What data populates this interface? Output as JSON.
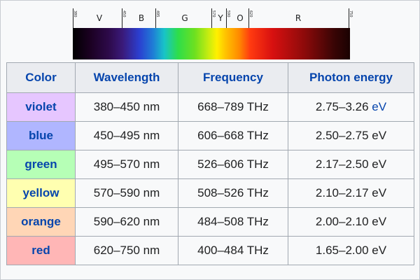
{
  "spectrum": {
    "band_letters": [
      "V",
      "B",
      "G",
      "Y",
      "O",
      "R"
    ],
    "tick_labels": [
      "380",
      "450",
      "495",
      "570",
      "590",
      "620",
      "750"
    ]
  },
  "table": {
    "headers": [
      "Color",
      "Wavelength",
      "Frequency",
      "Photon energy"
    ],
    "rows": [
      {
        "color": "violet",
        "wavelength": "380–450 nm",
        "frequency": "668–789 THz",
        "energy_value": "2.75–3.26",
        "energy_unit": "eV",
        "bg": "#e6c6ff"
      },
      {
        "color": "blue",
        "wavelength": "450–495 nm",
        "frequency": "606–668 THz",
        "energy_value": "2.50–2.75",
        "energy_unit": "eV",
        "bg": "#b0b6ff"
      },
      {
        "color": "green",
        "wavelength": "495–570 nm",
        "frequency": "526–606 THz",
        "energy_value": "2.17–2.50",
        "energy_unit": "eV",
        "bg": "#b6ffb6"
      },
      {
        "color": "yellow",
        "wavelength": "570–590 nm",
        "frequency": "508–526 THz",
        "energy_value": "2.10–2.17",
        "energy_unit": "eV",
        "bg": "#ffffb0"
      },
      {
        "color": "orange",
        "wavelength": "590–620 nm",
        "frequency": "484–508 THz",
        "energy_value": "2.00–2.10",
        "energy_unit": "eV",
        "bg": "#ffd6b6"
      },
      {
        "color": "red",
        "wavelength": "620–750 nm",
        "frequency": "400–484 THz",
        "energy_value": "1.65–2.00",
        "energy_unit": "eV",
        "bg": "#ffb6b6"
      }
    ]
  }
}
